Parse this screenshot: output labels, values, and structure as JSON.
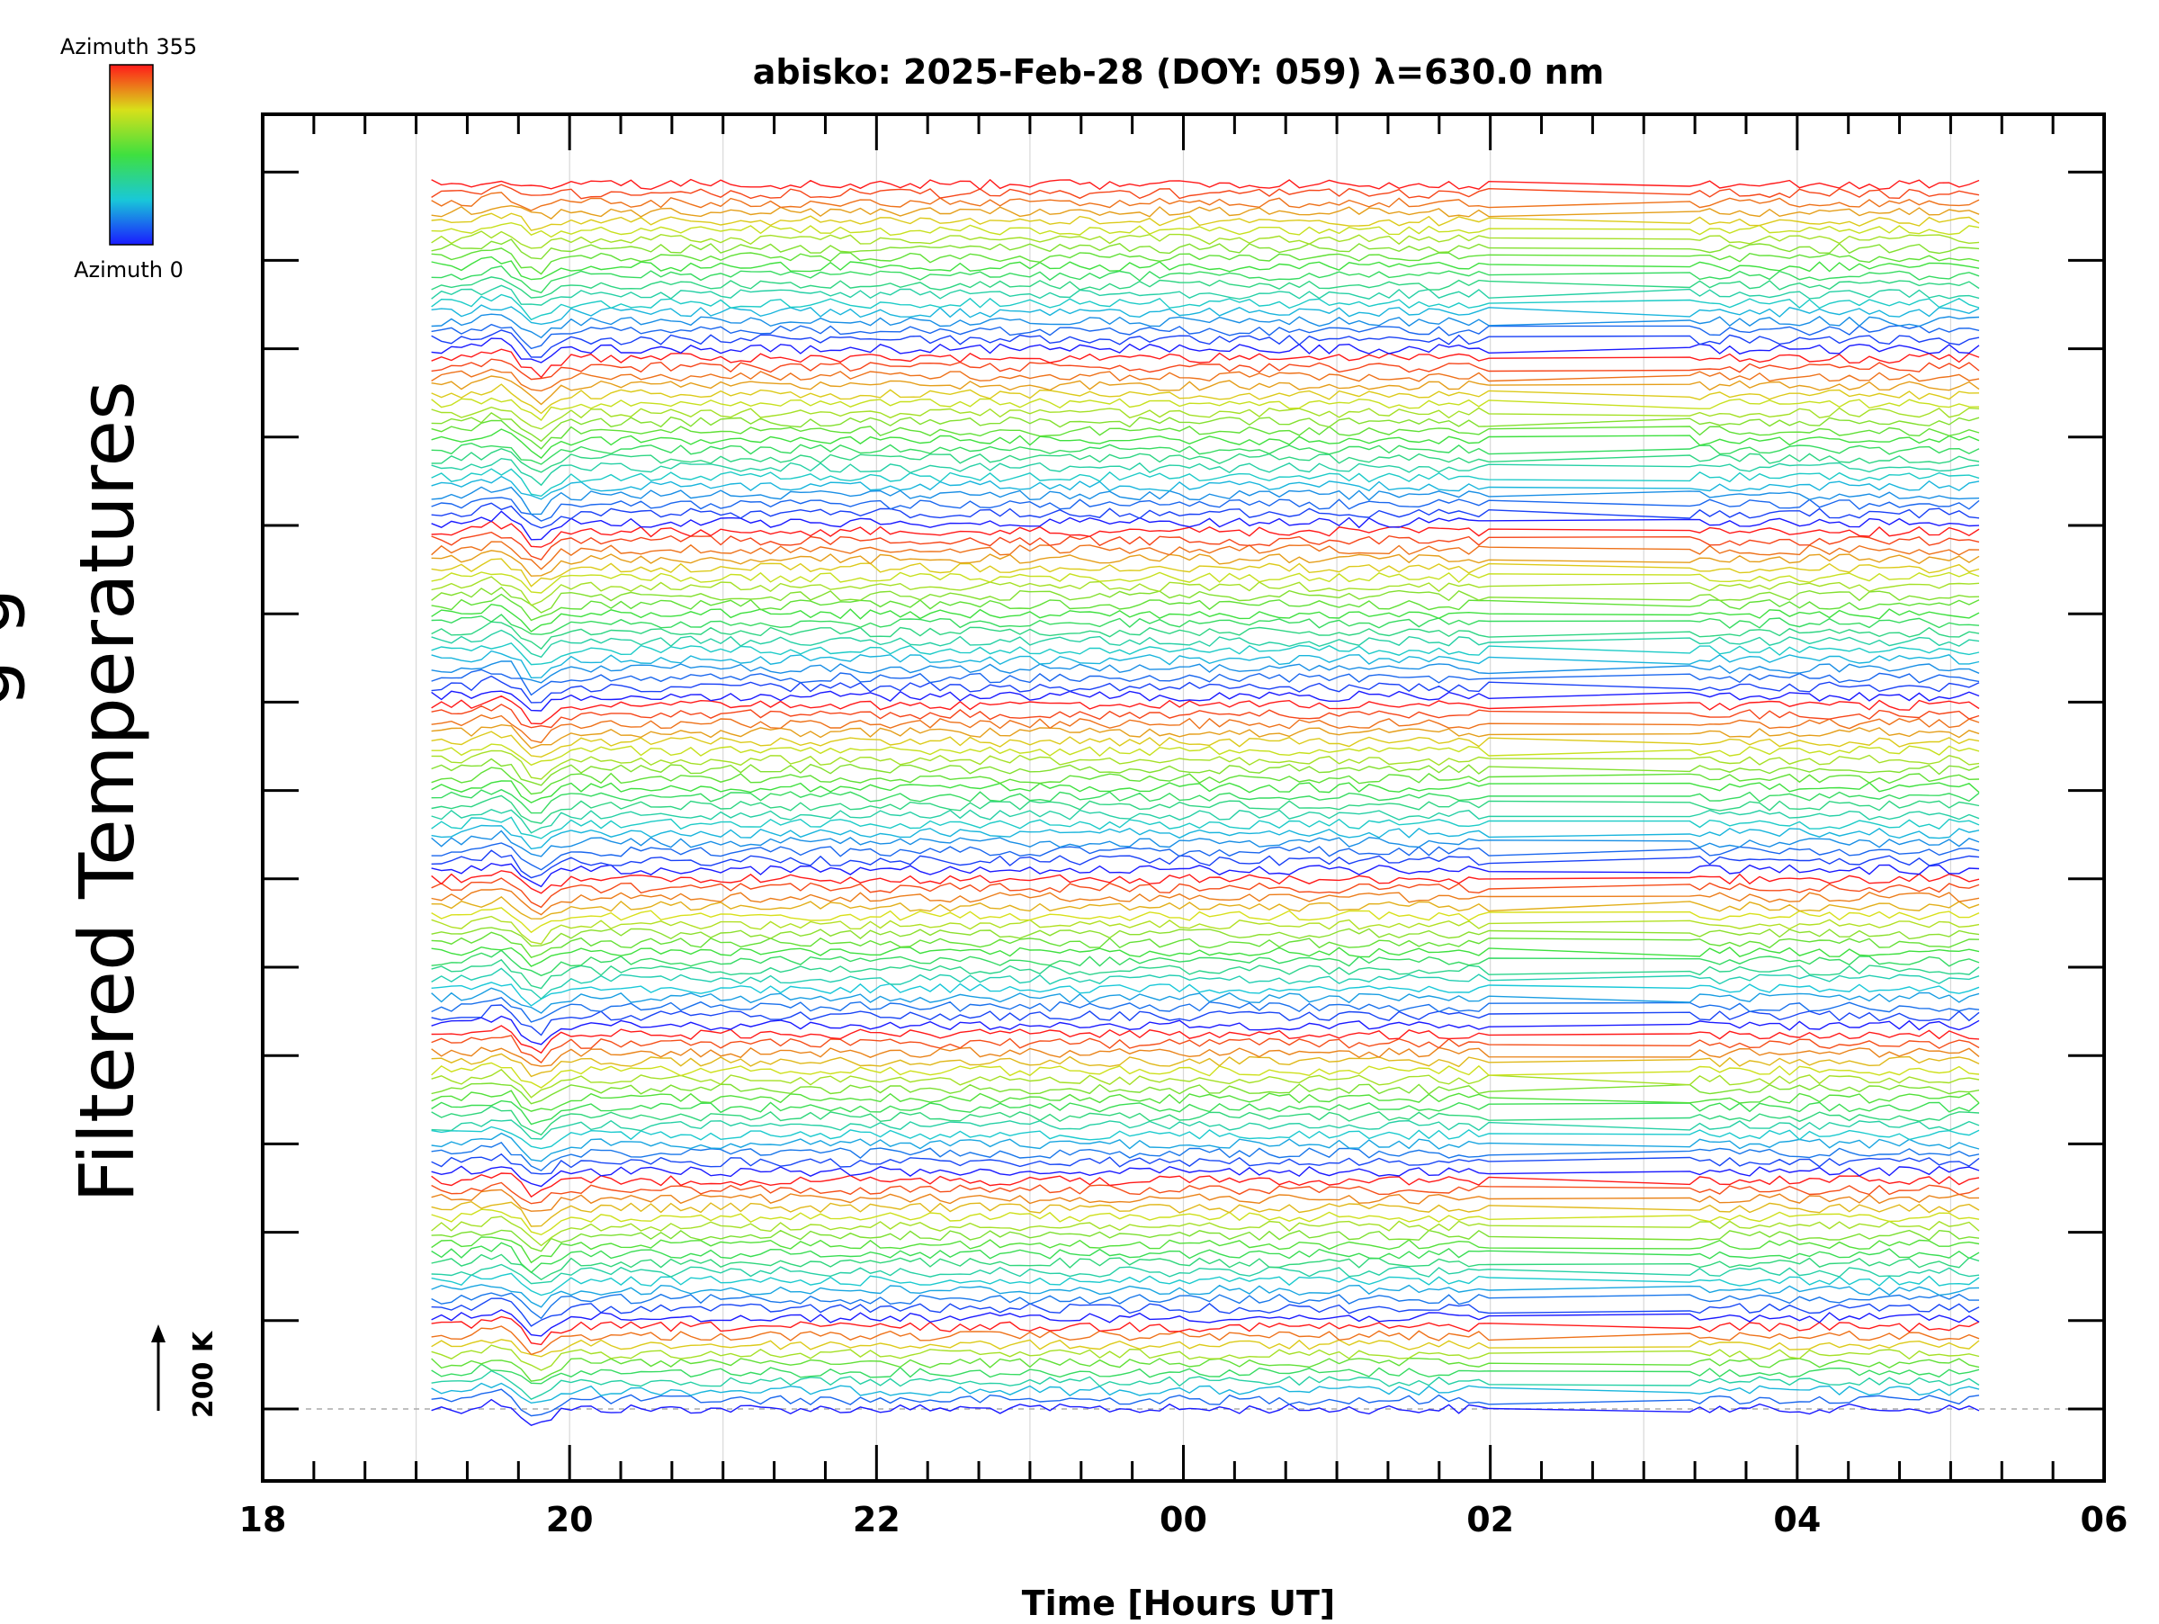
{
  "chart_data": {
    "type": "line",
    "title": "abisko: 2025-Feb-28 (DOY: 059) λ=630.0 nm",
    "xlabel": "Time [Hours UT]",
    "ylabel": "Filtered Temperatures",
    "x_range_hours": [
      18,
      30
    ],
    "x_tick_labels": [
      "18",
      "20",
      "22",
      "00",
      "02",
      "04",
      "06"
    ],
    "y_ticks_visible": 15,
    "scale_bar_label": "200 K",
    "colorbar": {
      "top_label": "Azimuth 355",
      "bottom_label": "Azimuth 0",
      "colormap": "rainbow (blue → cyan → green → yellow → red)"
    },
    "data_time_range_hours": [
      19.1,
      29.2
    ],
    "data_gap_hours": [
      26.0,
      27.3
    ],
    "series_count": 135,
    "series_description": "Stacked, vertically offset filtered temperature traces for each azimuth sector; colour encodes azimuth (0–355°). Traces repeat in blue→green→yellow→red cycles stacked bottom to top.",
    "colors": {
      "axis": "#000000",
      "gridline": "#d8d8d8",
      "baseline_dash": "#aaaaaa"
    }
  }
}
